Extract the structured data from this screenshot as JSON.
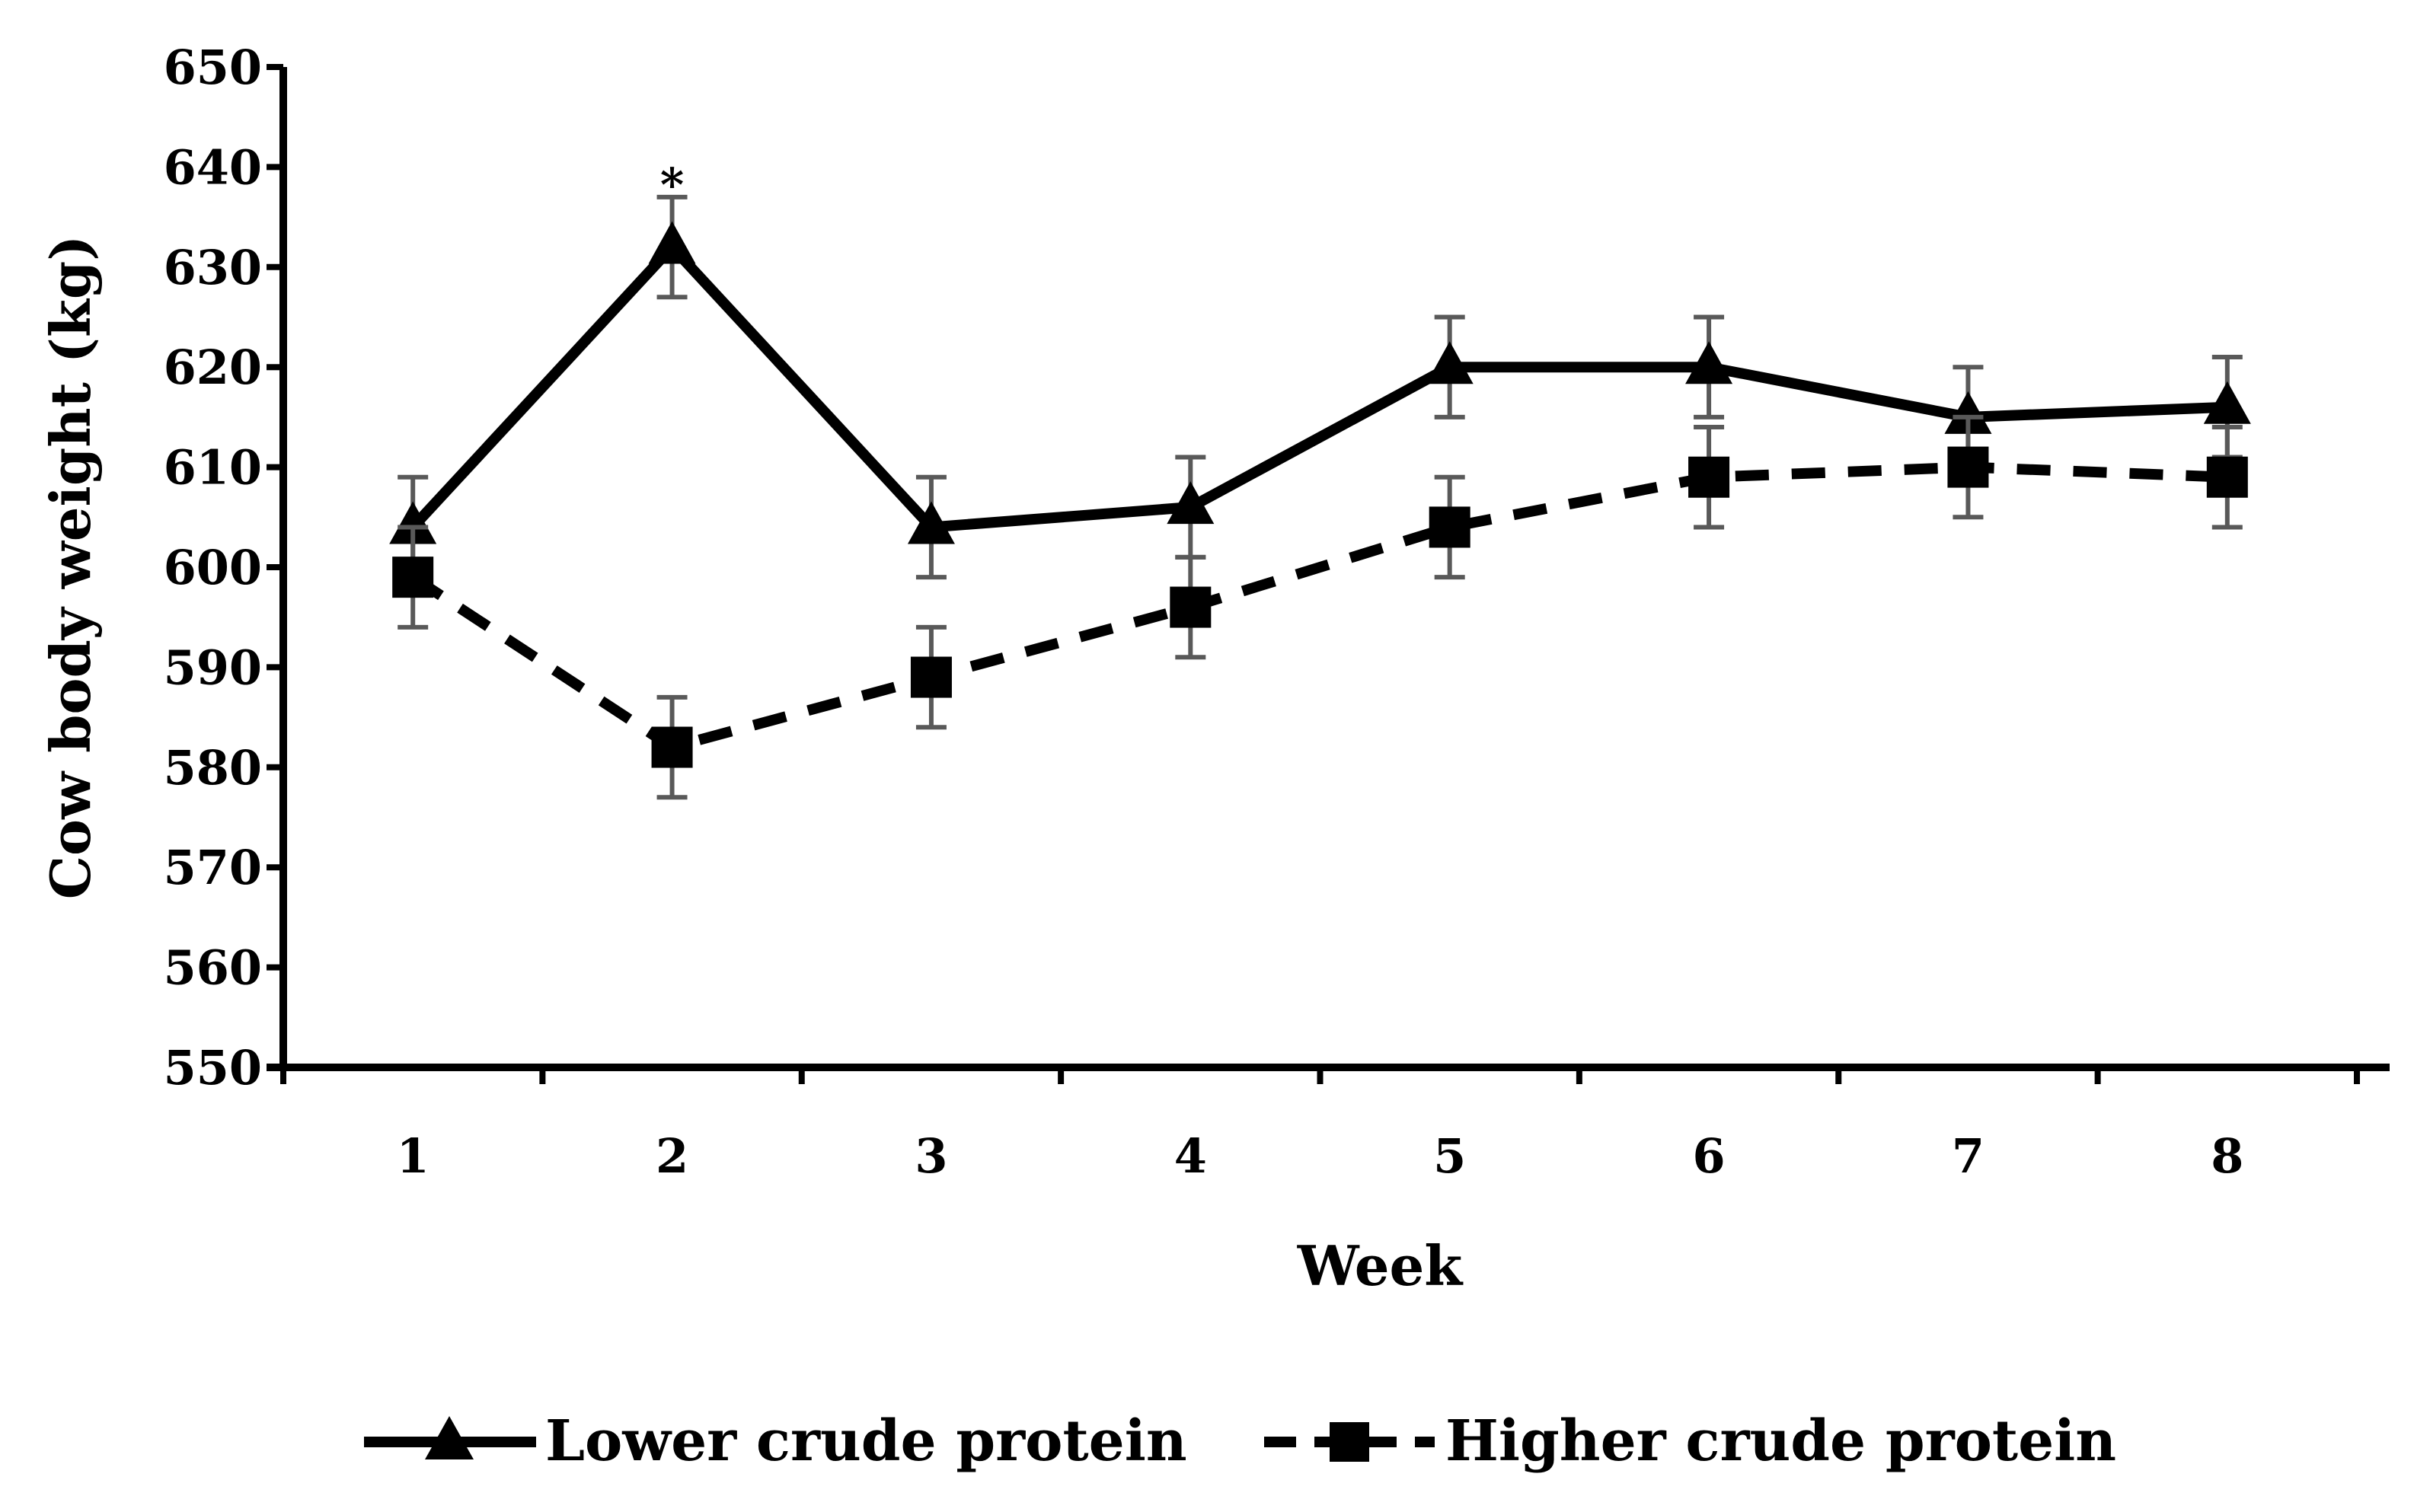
{
  "chart_data": {
    "type": "line",
    "title": "",
    "xlabel": "Week",
    "ylabel": "Cow body weight (kg)",
    "categories": [
      "1",
      "2",
      "3",
      "4",
      "5",
      "6",
      "7",
      "8"
    ],
    "ylim": [
      550,
      650
    ],
    "yticks": [
      "550",
      "560",
      "570",
      "580",
      "590",
      "600",
      "610",
      "620",
      "630",
      "640",
      "650"
    ],
    "grid": false,
    "legend_position": "bottom",
    "series": [
      {
        "name": "Lower crude protein",
        "marker": "triangle",
        "line_style": "solid",
        "values": [
          604,
          632,
          604,
          606,
          620,
          620,
          615,
          616
        ],
        "error": [
          5,
          5,
          5,
          5,
          5,
          5,
          5,
          5
        ]
      },
      {
        "name": "Higher crude protein",
        "marker": "square",
        "line_style": "dashed",
        "values": [
          599,
          582,
          589,
          596,
          604,
          609,
          610,
          609
        ],
        "error": [
          5,
          5,
          5,
          5,
          5,
          5,
          5,
          5
        ]
      }
    ],
    "annotations": [
      {
        "text": "*",
        "x": "2",
        "y": 640
      }
    ],
    "colors": {
      "line": "#000000",
      "error_bar": "#595959"
    }
  }
}
